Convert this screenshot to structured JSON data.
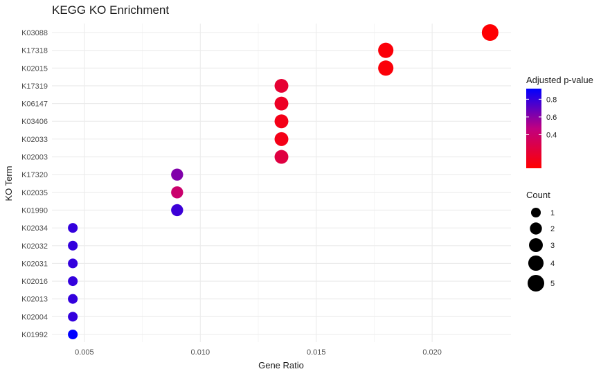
{
  "chart_data": {
    "type": "scatter",
    "title": "KEGG KO Enrichment",
    "xlabel": "Gene Ratio",
    "ylabel": "KO Term",
    "xlim": [
      0.0036,
      0.0234
    ],
    "x_ticks": [
      "0.005",
      "0.010",
      "0.015",
      "0.020"
    ],
    "x_tick_values": [
      0.005,
      0.01,
      0.015,
      0.02
    ],
    "grid": true,
    "legend_position": "right",
    "categories": [
      "K03088",
      "K17318",
      "K02015",
      "K17319",
      "K06147",
      "K03406",
      "K02033",
      "K02003",
      "K17320",
      "K02035",
      "K01990",
      "K02034",
      "K02032",
      "K02031",
      "K02016",
      "K02013",
      "K02004",
      "K01992"
    ],
    "points": [
      {
        "term": "K03088",
        "gene_ratio": 0.0225,
        "count": 5,
        "p_adjust": 0.03
      },
      {
        "term": "K17318",
        "gene_ratio": 0.018,
        "count": 4,
        "p_adjust": 0.05
      },
      {
        "term": "K02015",
        "gene_ratio": 0.018,
        "count": 4,
        "p_adjust": 0.05
      },
      {
        "term": "K17319",
        "gene_ratio": 0.0135,
        "count": 3,
        "p_adjust": 0.2
      },
      {
        "term": "K06147",
        "gene_ratio": 0.0135,
        "count": 3,
        "p_adjust": 0.15
      },
      {
        "term": "K03406",
        "gene_ratio": 0.0135,
        "count": 3,
        "p_adjust": 0.1
      },
      {
        "term": "K02033",
        "gene_ratio": 0.0135,
        "count": 3,
        "p_adjust": 0.1
      },
      {
        "term": "K02003",
        "gene_ratio": 0.0135,
        "count": 3,
        "p_adjust": 0.25
      },
      {
        "term": "K17320",
        "gene_ratio": 0.009,
        "count": 2,
        "p_adjust": 0.62
      },
      {
        "term": "K02035",
        "gene_ratio": 0.009,
        "count": 2,
        "p_adjust": 0.4
      },
      {
        "term": "K01990",
        "gene_ratio": 0.009,
        "count": 2,
        "p_adjust": 0.78
      },
      {
        "term": "K02034",
        "gene_ratio": 0.0045,
        "count": 1,
        "p_adjust": 0.8
      },
      {
        "term": "K02032",
        "gene_ratio": 0.0045,
        "count": 1,
        "p_adjust": 0.8
      },
      {
        "term": "K02031",
        "gene_ratio": 0.0045,
        "count": 1,
        "p_adjust": 0.8
      },
      {
        "term": "K02016",
        "gene_ratio": 0.0045,
        "count": 1,
        "p_adjust": 0.8
      },
      {
        "term": "K02013",
        "gene_ratio": 0.0045,
        "count": 1,
        "p_adjust": 0.8
      },
      {
        "term": "K02004",
        "gene_ratio": 0.0045,
        "count": 1,
        "p_adjust": 0.8
      },
      {
        "term": "K01992",
        "gene_ratio": 0.0045,
        "count": 1,
        "p_adjust": 0.92
      }
    ],
    "color_legend": {
      "title": "Adjusted p-value",
      "range": [
        0.02,
        0.92
      ],
      "tick_values": [
        0.8,
        0.6,
        0.4
      ],
      "tick_labels": [
        "0.8",
        "0.6",
        "0.4"
      ],
      "low_color": "#ff0000",
      "high_color": "#0000ff"
    },
    "size_legend": {
      "title": "Count",
      "values": [
        1,
        2,
        3,
        4,
        5
      ],
      "labels": [
        "1",
        "2",
        "3",
        "4",
        "5"
      ]
    }
  }
}
